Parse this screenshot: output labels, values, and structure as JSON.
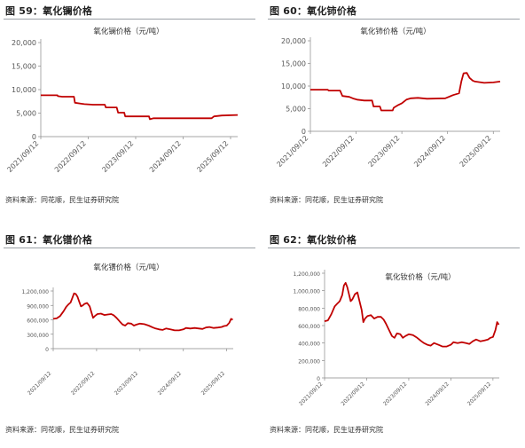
{
  "figures": [
    {
      "title": "图 59：氧化镧价格",
      "source": "资料来源：同花顺，民生证券研究院"
    },
    {
      "title": "图 60：氧化铈价格",
      "source": "资料来源：同花顺，民生证券研究院"
    },
    {
      "title": "图 61：氧化镨价格",
      "source": "资料来源：同花顺，民生证券研究院"
    },
    {
      "title": "图 62：氧化钕价格",
      "source": "资料来源：同花顺，民生证券研究院"
    }
  ],
  "chart_data": [
    {
      "type": "line",
      "title": "氧化镧价格（元/吨）",
      "line_color": "#c00000",
      "ylim": [
        0,
        20000
      ],
      "y_ticks": [
        0,
        5000,
        10000,
        15000,
        20000
      ],
      "y_tick_labels": [
        "0",
        "5,000",
        "10,000",
        "15,000",
        "20,000"
      ],
      "x_tick_labels": [
        "2021/09/12",
        "2022/09/12",
        "2023/09/12",
        "2024/09/12",
        "2025/09/12"
      ],
      "x_range": [
        2021.7,
        2025.85
      ],
      "x_ticks": [
        2021.7,
        2022.7,
        2023.7,
        2024.7,
        2025.7
      ],
      "series": [
        {
          "points": [
            [
              2021.7,
              8800
            ],
            [
              2022.05,
              8800
            ],
            [
              2022.06,
              8600
            ],
            [
              2022.15,
              8500
            ],
            [
              2022.4,
              8500
            ],
            [
              2022.42,
              7200
            ],
            [
              2022.55,
              7000
            ],
            [
              2022.62,
              6900
            ],
            [
              2022.8,
              6800
            ],
            [
              2023.05,
              6800
            ],
            [
              2023.07,
              6200
            ],
            [
              2023.3,
              6200
            ],
            [
              2023.33,
              5100
            ],
            [
              2023.46,
              5100
            ],
            [
              2023.48,
              4300
            ],
            [
              2023.98,
              4300
            ],
            [
              2024.0,
              3700
            ],
            [
              2024.08,
              3900
            ],
            [
              2025.3,
              3900
            ],
            [
              2025.35,
              4300
            ],
            [
              2025.52,
              4500
            ],
            [
              2025.85,
              4600
            ]
          ]
        }
      ]
    },
    {
      "type": "line",
      "title": "氧化铈价格（元/吨）",
      "line_color": "#c00000",
      "ylim": [
        0,
        20000
      ],
      "y_ticks": [
        0,
        5000,
        10000,
        15000,
        20000
      ],
      "y_tick_labels": [
        "0",
        "5,000",
        "10,000",
        "15,000",
        "20,000"
      ],
      "x_tick_labels": [
        "2021/09/12",
        "2022/09/12",
        "2023/09/12",
        "2024/09/12",
        "2025/09/12"
      ],
      "x_range": [
        2021.7,
        2025.85
      ],
      "x_ticks": [
        2021.7,
        2022.7,
        2023.7,
        2024.7,
        2025.7
      ],
      "series": [
        {
          "points": [
            [
              2021.7,
              9200
            ],
            [
              2022.08,
              9200
            ],
            [
              2022.1,
              9000
            ],
            [
              2022.35,
              9000
            ],
            [
              2022.4,
              7800
            ],
            [
              2022.55,
              7600
            ],
            [
              2022.65,
              7200
            ],
            [
              2022.72,
              7000
            ],
            [
              2022.88,
              6800
            ],
            [
              2023.05,
              6800
            ],
            [
              2023.08,
              5500
            ],
            [
              2023.22,
              5500
            ],
            [
              2023.25,
              4600
            ],
            [
              2023.5,
              4600
            ],
            [
              2023.52,
              5200
            ],
            [
              2023.62,
              5800
            ],
            [
              2023.7,
              6200
            ],
            [
              2023.8,
              7000
            ],
            [
              2023.9,
              7300
            ],
            [
              2024.05,
              7400
            ],
            [
              2024.25,
              7200
            ],
            [
              2024.65,
              7300
            ],
            [
              2024.82,
              8000
            ],
            [
              2024.95,
              8400
            ],
            [
              2025.0,
              11000
            ],
            [
              2025.05,
              12800
            ],
            [
              2025.12,
              12900
            ],
            [
              2025.18,
              11800
            ],
            [
              2025.25,
              11200
            ],
            [
              2025.3,
              11000
            ],
            [
              2025.5,
              10700
            ],
            [
              2025.7,
              10800
            ],
            [
              2025.85,
              11000
            ]
          ]
        }
      ]
    },
    {
      "type": "line",
      "title": "氧化镨价格（元/吨）",
      "line_color": "#c00000",
      "ylim": [
        0,
        1200000
      ],
      "y_ticks": [
        0,
        300000,
        600000,
        900000,
        1200000
      ],
      "y_tick_labels": [
        "0",
        "300,000",
        "600,000",
        "900,000",
        "1,200,000"
      ],
      "x_tick_labels": [
        "2021/09/12",
        "2022/09/12",
        "2023/09/12",
        "2024/09/12",
        "2025/09/12"
      ],
      "x_range": [
        2021.7,
        2025.85
      ],
      "x_ticks": [
        2021.7,
        2022.7,
        2023.7,
        2024.7,
        2025.7
      ],
      "series": [
        {
          "points": [
            [
              2021.7,
              620000
            ],
            [
              2021.78,
              630000
            ],
            [
              2021.86,
              680000
            ],
            [
              2021.94,
              780000
            ],
            [
              2022.0,
              870000
            ],
            [
              2022.05,
              920000
            ],
            [
              2022.1,
              960000
            ],
            [
              2022.14,
              1050000
            ],
            [
              2022.18,
              1150000
            ],
            [
              2022.22,
              1140000
            ],
            [
              2022.26,
              1080000
            ],
            [
              2022.3,
              980000
            ],
            [
              2022.34,
              880000
            ],
            [
              2022.38,
              900000
            ],
            [
              2022.42,
              930000
            ],
            [
              2022.48,
              950000
            ],
            [
              2022.54,
              880000
            ],
            [
              2022.58,
              760000
            ],
            [
              2022.62,
              640000
            ],
            [
              2022.66,
              680000
            ],
            [
              2022.72,
              720000
            ],
            [
              2022.8,
              730000
            ],
            [
              2022.88,
              700000
            ],
            [
              2022.96,
              710000
            ],
            [
              2023.04,
              720000
            ],
            [
              2023.1,
              690000
            ],
            [
              2023.16,
              640000
            ],
            [
              2023.24,
              560000
            ],
            [
              2023.3,
              500000
            ],
            [
              2023.36,
              480000
            ],
            [
              2023.42,
              530000
            ],
            [
              2023.5,
              520000
            ],
            [
              2023.56,
              480000
            ],
            [
              2023.62,
              500000
            ],
            [
              2023.7,
              520000
            ],
            [
              2023.8,
              510000
            ],
            [
              2023.9,
              480000
            ],
            [
              2024.0,
              440000
            ],
            [
              2024.06,
              420000
            ],
            [
              2024.14,
              400000
            ],
            [
              2024.22,
              390000
            ],
            [
              2024.3,
              420000
            ],
            [
              2024.4,
              400000
            ],
            [
              2024.5,
              380000
            ],
            [
              2024.6,
              380000
            ],
            [
              2024.7,
              400000
            ],
            [
              2024.76,
              430000
            ],
            [
              2024.86,
              420000
            ],
            [
              2024.96,
              430000
            ],
            [
              2025.06,
              420000
            ],
            [
              2025.14,
              410000
            ],
            [
              2025.22,
              440000
            ],
            [
              2025.3,
              450000
            ],
            [
              2025.4,
              430000
            ],
            [
              2025.5,
              440000
            ],
            [
              2025.58,
              450000
            ],
            [
              2025.64,
              470000
            ],
            [
              2025.7,
              480000
            ],
            [
              2025.76,
              540000
            ],
            [
              2025.8,
              620000
            ],
            [
              2025.84,
              600000
            ]
          ]
        }
      ]
    },
    {
      "type": "line",
      "title": "氧化钕价格（元/吨）",
      "line_color": "#c00000",
      "ylim": [
        0,
        1200000
      ],
      "y_ticks": [
        0,
        200000,
        400000,
        600000,
        800000,
        1000000,
        1200000
      ],
      "y_tick_labels": [
        "0",
        "200,000",
        "400,000",
        "600,000",
        "800,000",
        "1,000,000",
        "1,200,000"
      ],
      "x_tick_labels": [
        "2021/09/12",
        "2022/09/12",
        "2023/09/12",
        "2024/09/12",
        "2025/09/12"
      ],
      "x_range": [
        2021.7,
        2025.85
      ],
      "x_ticks": [
        2021.7,
        2022.7,
        2023.7,
        2024.7,
        2025.7
      ],
      "series": [
        {
          "points": [
            [
              2021.7,
              650000
            ],
            [
              2021.78,
              660000
            ],
            [
              2021.86,
              730000
            ],
            [
              2021.94,
              820000
            ],
            [
              2022.0,
              850000
            ],
            [
              2022.06,
              880000
            ],
            [
              2022.12,
              950000
            ],
            [
              2022.16,
              1060000
            ],
            [
              2022.2,
              1090000
            ],
            [
              2022.24,
              1040000
            ],
            [
              2022.28,
              960000
            ],
            [
              2022.32,
              880000
            ],
            [
              2022.36,
              900000
            ],
            [
              2022.42,
              960000
            ],
            [
              2022.48,
              980000
            ],
            [
              2022.52,
              900000
            ],
            [
              2022.58,
              780000
            ],
            [
              2022.62,
              640000
            ],
            [
              2022.66,
              680000
            ],
            [
              2022.72,
              710000
            ],
            [
              2022.8,
              720000
            ],
            [
              2022.88,
              680000
            ],
            [
              2022.96,
              700000
            ],
            [
              2023.04,
              700000
            ],
            [
              2023.1,
              670000
            ],
            [
              2023.16,
              620000
            ],
            [
              2023.24,
              540000
            ],
            [
              2023.3,
              480000
            ],
            [
              2023.36,
              460000
            ],
            [
              2023.42,
              510000
            ],
            [
              2023.5,
              500000
            ],
            [
              2023.56,
              460000
            ],
            [
              2023.62,
              480000
            ],
            [
              2023.7,
              500000
            ],
            [
              2023.8,
              490000
            ],
            [
              2023.9,
              460000
            ],
            [
              2024.0,
              420000
            ],
            [
              2024.06,
              400000
            ],
            [
              2024.14,
              380000
            ],
            [
              2024.22,
              370000
            ],
            [
              2024.3,
              400000
            ],
            [
              2024.4,
              380000
            ],
            [
              2024.5,
              360000
            ],
            [
              2024.6,
              360000
            ],
            [
              2024.7,
              380000
            ],
            [
              2024.76,
              410000
            ],
            [
              2024.86,
              400000
            ],
            [
              2024.96,
              410000
            ],
            [
              2025.06,
              400000
            ],
            [
              2025.14,
              390000
            ],
            [
              2025.22,
              420000
            ],
            [
              2025.3,
              440000
            ],
            [
              2025.4,
              420000
            ],
            [
              2025.5,
              430000
            ],
            [
              2025.58,
              440000
            ],
            [
              2025.64,
              460000
            ],
            [
              2025.7,
              470000
            ],
            [
              2025.76,
              550000
            ],
            [
              2025.8,
              640000
            ],
            [
              2025.84,
              610000
            ]
          ]
        }
      ]
    }
  ]
}
